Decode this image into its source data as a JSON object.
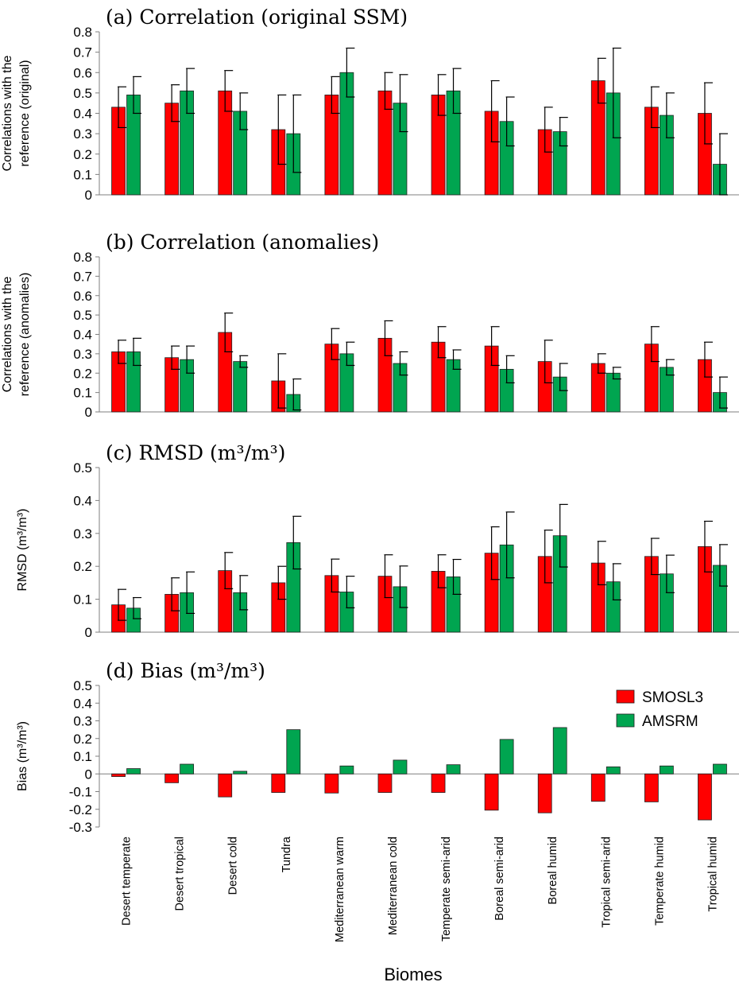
{
  "chart_data": [
    {
      "panel": "a",
      "type": "bar",
      "title": "(a) Correlation (original SSM)",
      "ylabel": [
        "Correlations with the",
        "reference (original)"
      ],
      "ylim": [
        0,
        0.8
      ],
      "yticks": [
        "0",
        "0.1",
        "0.2",
        "0.3",
        "0.4",
        "0.5",
        "0.6",
        "0.7",
        "0.8"
      ],
      "series": [
        {
          "name": "SMOSL3",
          "color": "#ff0000",
          "values": [
            0.43,
            0.45,
            0.51,
            0.32,
            0.49,
            0.51,
            0.49,
            0.41,
            0.32,
            0.56,
            0.43,
            0.4
          ],
          "errors": [
            0.1,
            0.09,
            0.1,
            0.17,
            0.09,
            0.09,
            0.1,
            0.15,
            0.11,
            0.11,
            0.1,
            0.15
          ]
        },
        {
          "name": "AMSRM",
          "color": "#00a550",
          "values": [
            0.49,
            0.51,
            0.41,
            0.3,
            0.6,
            0.45,
            0.51,
            0.36,
            0.31,
            0.5,
            0.39,
            0.15
          ],
          "errors": [
            0.09,
            0.11,
            0.09,
            0.19,
            0.12,
            0.14,
            0.11,
            0.12,
            0.07,
            0.22,
            0.11,
            0.15
          ]
        }
      ]
    },
    {
      "panel": "b",
      "type": "bar",
      "title": "(b) Correlation (anomalies)",
      "ylabel": [
        "Correlations with the",
        "reference (anomalies)"
      ],
      "ylim": [
        0,
        0.8
      ],
      "yticks": [
        "0",
        "0.1",
        "0.2",
        "0.3",
        "0.4",
        "0.5",
        "0.6",
        "0.7",
        "0.8"
      ],
      "series": [
        {
          "name": "SMOSL3",
          "color": "#ff0000",
          "values": [
            0.31,
            0.28,
            0.41,
            0.16,
            0.35,
            0.38,
            0.36,
            0.34,
            0.26,
            0.25,
            0.35,
            0.27
          ],
          "errors": [
            0.06,
            0.06,
            0.1,
            0.14,
            0.08,
            0.09,
            0.08,
            0.1,
            0.11,
            0.05,
            0.09,
            0.09
          ]
        },
        {
          "name": "AMSRM",
          "color": "#00a550",
          "values": [
            0.31,
            0.27,
            0.26,
            0.09,
            0.3,
            0.25,
            0.27,
            0.22,
            0.18,
            0.2,
            0.23,
            0.1
          ],
          "errors": [
            0.07,
            0.07,
            0.03,
            0.08,
            0.06,
            0.06,
            0.05,
            0.07,
            0.07,
            0.03,
            0.04,
            0.08
          ]
        }
      ]
    },
    {
      "panel": "c",
      "type": "bar",
      "title": "(c) RMSD (m³/m³)",
      "ylabel": [
        "RMSD (m³/m³)"
      ],
      "ylim": [
        0,
        0.5
      ],
      "yticks": [
        "0",
        "0.1",
        "0.2",
        "0.3",
        "0.4",
        "0.5"
      ],
      "series": [
        {
          "name": "SMOSL3",
          "color": "#ff0000",
          "values": [
            0.083,
            0.115,
            0.187,
            0.15,
            0.172,
            0.17,
            0.185,
            0.24,
            0.23,
            0.21,
            0.23,
            0.26
          ],
          "errors": [
            0.047,
            0.05,
            0.055,
            0.05,
            0.05,
            0.065,
            0.05,
            0.08,
            0.08,
            0.066,
            0.055,
            0.077
          ]
        },
        {
          "name": "AMSRM",
          "color": "#00a550",
          "values": [
            0.073,
            0.12,
            0.12,
            0.272,
            0.122,
            0.138,
            0.168,
            0.265,
            0.293,
            0.153,
            0.177,
            0.203
          ],
          "errors": [
            0.032,
            0.063,
            0.052,
            0.08,
            0.048,
            0.063,
            0.053,
            0.1,
            0.095,
            0.055,
            0.057,
            0.063
          ]
        }
      ]
    },
    {
      "panel": "d",
      "type": "bar",
      "title": "(d) Bias (m³/m³)",
      "ylabel": [
        "Bias (m³/m³)"
      ],
      "ylim": [
        -0.3,
        0.5
      ],
      "yticks": [
        "-0.3",
        "-0.2",
        "-0.1",
        "0",
        "0.1",
        "0.2",
        "0.3",
        "0.4",
        "0.5"
      ],
      "legend": "top-right",
      "series": [
        {
          "name": "SMOSL3",
          "color": "#ff0000",
          "values": [
            -0.015,
            -0.05,
            -0.13,
            -0.105,
            -0.108,
            -0.105,
            -0.105,
            -0.205,
            -0.22,
            -0.155,
            -0.158,
            -0.26
          ]
        },
        {
          "name": "AMSRM",
          "color": "#00a550",
          "values": [
            0.03,
            0.055,
            0.015,
            0.25,
            0.045,
            0.078,
            0.052,
            0.195,
            0.262,
            0.04,
            0.045,
            0.055
          ]
        }
      ]
    }
  ],
  "categories": [
    "Desert temperate",
    "Desert tropical",
    "Desert cold",
    "Tundra",
    "Mediterranean warm",
    "Mediterranean cold",
    "Temperate semi-arid",
    "Boreal semi-arid",
    "Boreal humid",
    "Tropical semi-arid",
    "Temperate humid",
    "Tropical humid"
  ],
  "xlabel": "Biomes",
  "legend": {
    "items": [
      "SMOSL3",
      "AMSRM"
    ]
  }
}
